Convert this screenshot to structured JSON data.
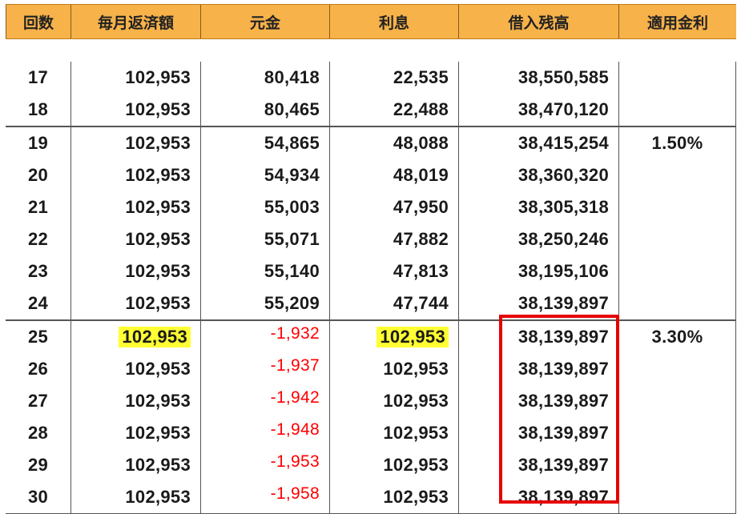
{
  "header": {
    "columns": [
      "回数",
      "毎月返済額",
      "元金",
      "利息",
      "借入残高",
      "適用金利"
    ]
  },
  "groups": [
    {
      "rows": [
        {
          "n": "17",
          "payment": "102,953",
          "principal": "80,418",
          "interest": "22,535",
          "balance": "38,550,585",
          "rate": ""
        },
        {
          "n": "18",
          "payment": "102,953",
          "principal": "80,465",
          "interest": "22,488",
          "balance": "38,470,120",
          "rate": ""
        }
      ]
    },
    {
      "rows": [
        {
          "n": "19",
          "payment": "102,953",
          "principal": "54,865",
          "interest": "48,088",
          "balance": "38,415,254",
          "rate": "1.50%"
        },
        {
          "n": "20",
          "payment": "102,953",
          "principal": "54,934",
          "interest": "48,019",
          "balance": "38,360,320",
          "rate": ""
        },
        {
          "n": "21",
          "payment": "102,953",
          "principal": "55,003",
          "interest": "47,950",
          "balance": "38,305,318",
          "rate": ""
        },
        {
          "n": "22",
          "payment": "102,953",
          "principal": "55,071",
          "interest": "47,882",
          "balance": "38,250,246",
          "rate": ""
        },
        {
          "n": "23",
          "payment": "102,953",
          "principal": "55,140",
          "interest": "47,813",
          "balance": "38,195,106",
          "rate": ""
        },
        {
          "n": "24",
          "payment": "102,953",
          "principal": "55,209",
          "interest": "47,744",
          "balance": "38,139,897",
          "rate": ""
        }
      ]
    },
    {
      "rows": [
        {
          "n": "25",
          "payment": "102,953",
          "principal": "-1,932",
          "interest": "102,953",
          "balance": "38,139,897",
          "rate": "3.30%"
        },
        {
          "n": "26",
          "payment": "102,953",
          "principal": "-1,937",
          "interest": "102,953",
          "balance": "38,139,897",
          "rate": ""
        },
        {
          "n": "27",
          "payment": "102,953",
          "principal": "-1,942",
          "interest": "102,953",
          "balance": "38,139,897",
          "rate": ""
        },
        {
          "n": "28",
          "payment": "102,953",
          "principal": "-1,948",
          "interest": "102,953",
          "balance": "38,139,897",
          "rate": ""
        },
        {
          "n": "29",
          "payment": "102,953",
          "principal": "-1,953",
          "interest": "102,953",
          "balance": "38,139,897",
          "rate": ""
        },
        {
          "n": "30",
          "payment": "102,953",
          "principal": "-1,958",
          "interest": "102,953",
          "balance": "38,139,897",
          "rate": ""
        }
      ]
    }
  ],
  "colors": {
    "header_bg": "#f7b24a",
    "highlight": "#ffff33",
    "negative_text": "#ff0000",
    "box_border": "#e60000"
  }
}
